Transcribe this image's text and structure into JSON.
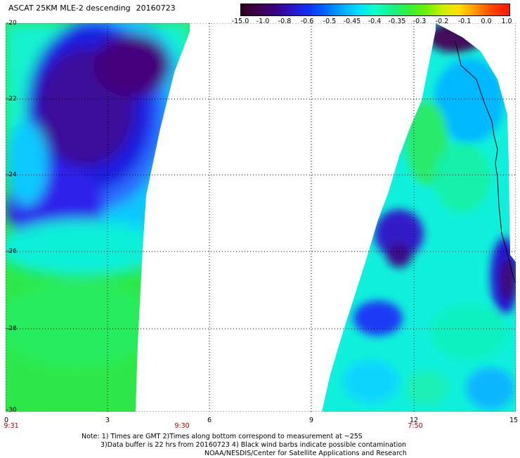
{
  "header": {
    "title": "ASCAT 25KM MLE-2 descending",
    "date": "20160723"
  },
  "colorbar": {
    "labels": [
      "-15.0",
      "-1.0",
      "-0.8",
      "-0.6",
      "-0.5",
      "-0.45",
      "-0.4",
      "-0.35",
      "-0.3",
      "-0.2",
      "-0.1",
      "0.0",
      "1.0"
    ]
  },
  "map": {
    "lat_labels": [
      "-20",
      "-22",
      "-24",
      "-26",
      "-28",
      "-30"
    ],
    "lon_labels": [
      "0",
      "3",
      "6",
      "9",
      "12",
      "15"
    ],
    "time_labels": [
      "9:31",
      "9:30",
      "7:50"
    ]
  },
  "notes": {
    "line1": "Note: 1) Times are GMT 2)Times along bottom correspond to measurement at ~25S",
    "line2": "3)Data buffer is 22 hrs from 20160723 4) Black wind barbs indicate possible contamination",
    "line3": "NOAA/NESDIS/Center for Satellite Applications and Research"
  },
  "colors": {
    "colorbar_stops": [
      "#2a001f",
      "#3d0048",
      "#3a0077",
      "#2a16c8",
      "#1030f0",
      "#0063ff",
      "#00a4ff",
      "#00e0ff",
      "#11ffc8",
      "#18f08a",
      "#30f040",
      "#6af000",
      "#c8f000",
      "#ffe000",
      "#ff9a00",
      "#ff4a00",
      "#ff1500"
    ],
    "time_label": "#c00000"
  }
}
